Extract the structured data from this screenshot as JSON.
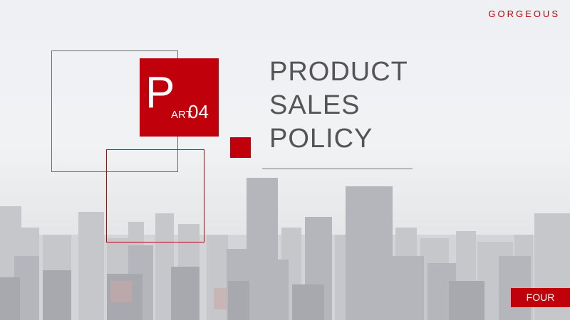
{
  "brand": "GORGEOUS",
  "part": {
    "letter": "P",
    "rest": "ART",
    "number": "04"
  },
  "title": {
    "line1": "PRODUCT",
    "line2": "SALES",
    "line3": "POLICY"
  },
  "badge": "FOUR",
  "colors": {
    "accent": "#c0000b",
    "title_text": "#555555"
  }
}
